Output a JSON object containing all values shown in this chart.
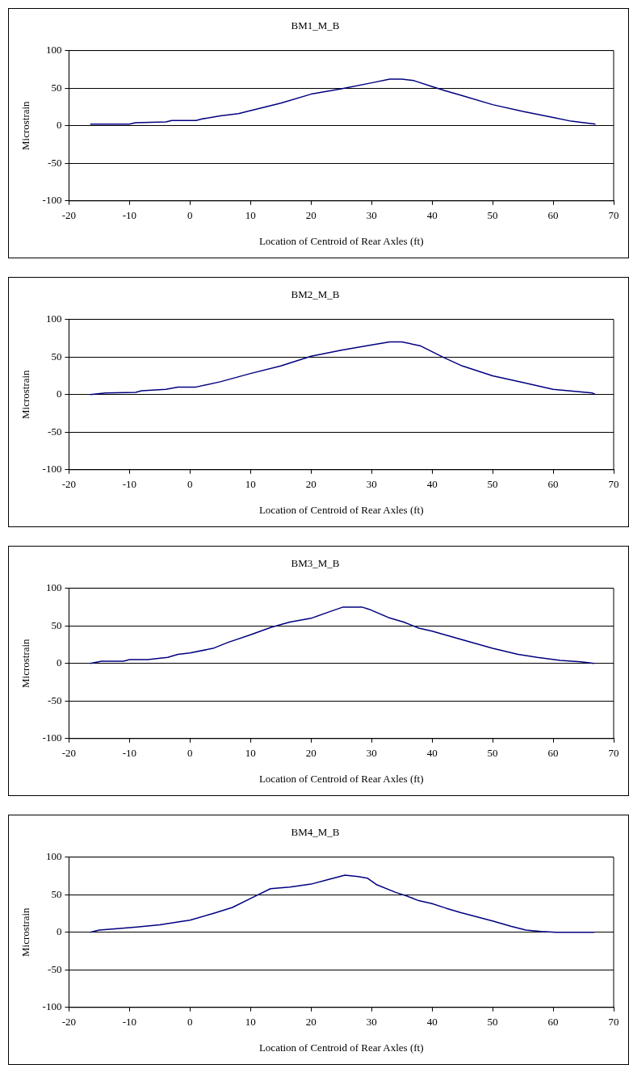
{
  "chart_data": [
    {
      "type": "line",
      "title": "BM1_M_B",
      "xlabel": "Location of Centroid of Rear Axles (ft)",
      "ylabel": "Microstrain",
      "xlim": [
        -20,
        70
      ],
      "xticks": [
        -20,
        -10,
        0,
        10,
        20,
        30,
        40,
        50,
        60,
        70
      ],
      "ylim": [
        -100,
        100
      ],
      "yticks": [
        -100,
        -50,
        0,
        50,
        100
      ],
      "grid": "y",
      "legend": false,
      "marker": "none",
      "series": [
        {
          "color": "#000080",
          "x": [
            -16.5,
            -10,
            -9,
            -4,
            -3,
            1,
            2,
            5,
            8,
            10,
            15,
            20,
            25,
            30,
            33,
            35,
            37,
            40,
            42,
            45,
            50,
            55,
            60,
            63,
            67
          ],
          "values": [
            2,
            2,
            4,
            5,
            7,
            7,
            9,
            13,
            16,
            20,
            30,
            42,
            49,
            57,
            62,
            62,
            60,
            52,
            47,
            40,
            28,
            19,
            11,
            6,
            2
          ]
        }
      ]
    },
    {
      "type": "line",
      "title": "BM2_M_B",
      "xlabel": "Location of Centroid of Rear Axles (ft)",
      "ylabel": "Microstrain",
      "xlim": [
        -20,
        70
      ],
      "xticks": [
        -20,
        -10,
        0,
        10,
        20,
        30,
        40,
        50,
        60,
        70
      ],
      "ylim": [
        -100,
        100
      ],
      "yticks": [
        -100,
        -50,
        0,
        50,
        100
      ],
      "grid": "y",
      "legend": false,
      "marker": "none",
      "series": [
        {
          "color": "#000080",
          "x": [
            -16.5,
            -14,
            -9,
            -8,
            -4,
            -2,
            1,
            5,
            10,
            15,
            20,
            25,
            30,
            33,
            35,
            38,
            40,
            42,
            45,
            50,
            55,
            60,
            64,
            66.5,
            67
          ],
          "values": [
            0,
            2,
            3,
            5,
            7,
            10,
            10,
            17,
            28,
            38,
            51,
            59,
            66,
            70,
            70,
            65,
            57,
            49,
            38,
            25,
            16,
            7,
            4,
            2,
            0
          ]
        }
      ]
    },
    {
      "type": "line",
      "title": "BM3_M_B",
      "xlabel": "Location of Centroid of Rear Axles (ft)",
      "ylabel": "Microstrain",
      "xlim": [
        -20,
        70
      ],
      "xticks": [
        -20,
        -10,
        0,
        10,
        20,
        30,
        40,
        50,
        60,
        70
      ],
      "ylim": [
        -100,
        100
      ],
      "yticks": [
        -100,
        -50,
        0,
        50,
        100
      ],
      "grid": "y",
      "legend": false,
      "marker": "none",
      "series": [
        {
          "color": "#000080",
          "x": [
            -16.5,
            -14.6,
            -11,
            -10,
            -7,
            -3.7,
            -2,
            0,
            3.8,
            6.3,
            10,
            13.4,
            16.5,
            20,
            22.8,
            25.3,
            28.4,
            29.6,
            32.8,
            35.3,
            37.8,
            40,
            44.8,
            50,
            54.2,
            57.4,
            61.2,
            64.6,
            66.8
          ],
          "values": [
            0,
            3,
            3,
            5,
            5,
            8,
            12,
            14,
            20,
            28,
            38,
            48,
            55,
            60,
            68,
            75,
            75,
            72,
            61,
            55,
            47,
            43,
            32,
            20,
            12,
            8,
            4,
            2,
            0
          ]
        }
      ]
    },
    {
      "type": "line",
      "title": "BM4_M_B",
      "xlabel": "Location of Centroid of Rear Axles (ft)",
      "ylabel": "Microstrain",
      "xlim": [
        -20,
        70
      ],
      "xticks": [
        -20,
        -10,
        0,
        10,
        20,
        30,
        40,
        50,
        60,
        70
      ],
      "ylim": [
        -100,
        100
      ],
      "yticks": [
        -100,
        -50,
        0,
        50,
        100
      ],
      "grid": "y",
      "legend": false,
      "marker": "none",
      "series": [
        {
          "color": "#000080",
          "x": [
            -16.5,
            -15,
            -11.6,
            -8.8,
            -5,
            -1.8,
            0,
            3.8,
            7,
            10,
            13.3,
            16.5,
            20,
            22.8,
            25.6,
            27.8,
            29.3,
            30.9,
            34,
            35.9,
            37.8,
            40,
            42.3,
            44.8,
            50,
            53,
            55.5,
            58,
            60.5,
            66.8
          ],
          "values": [
            0,
            3,
            5,
            7,
            10,
            14,
            16,
            25,
            33,
            45,
            58,
            60,
            64,
            70,
            76,
            74,
            72,
            63,
            53,
            48,
            42,
            38,
            32,
            26,
            15,
            8,
            3,
            1,
            0,
            0
          ]
        }
      ]
    }
  ]
}
